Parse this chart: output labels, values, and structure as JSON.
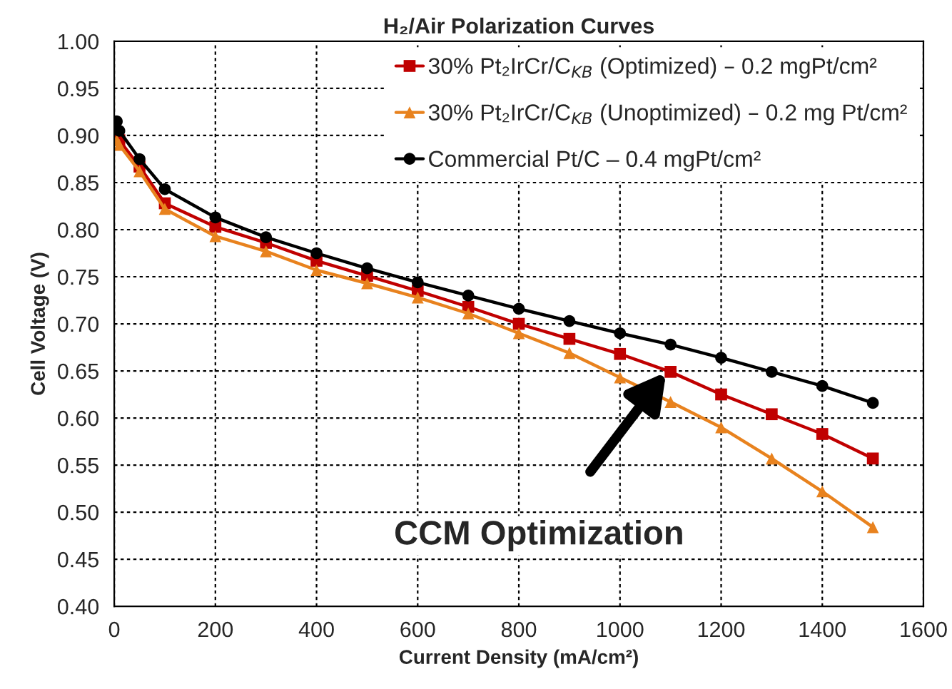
{
  "chart_data": {
    "type": "line",
    "title": "H₂/Air Polarization Curves",
    "xlabel": "Current Density (mA/cm²)",
    "ylabel": "Cell Voltage (V)",
    "x": [
      5,
      10,
      50,
      100,
      200,
      300,
      400,
      500,
      600,
      700,
      800,
      900,
      1000,
      1100,
      1200,
      1300,
      1400,
      1500
    ],
    "series": [
      {
        "name": "30% Pt₂IrCr/C$_{KB}$ (Optimized) – 0.2 mgPt/cm²",
        "color": "#c00000",
        "marker": "square",
        "values": [
          0.9,
          0.895,
          0.867,
          0.828,
          0.803,
          0.786,
          0.767,
          0.751,
          0.735,
          0.718,
          0.7,
          0.684,
          0.668,
          0.649,
          0.625,
          0.604,
          0.583,
          0.557
        ]
      },
      {
        "name": "30% Pt₂IrCr/C$_{KB}$ (Unoptimized) – 0.2 mg Pt/cm²",
        "color": "#e8821e",
        "marker": "triangle",
        "values": [
          0.895,
          0.89,
          0.862,
          0.822,
          0.793,
          0.777,
          0.757,
          0.743,
          0.728,
          0.711,
          0.69,
          0.669,
          0.643,
          0.617,
          0.59,
          0.557,
          0.522,
          0.484
        ]
      },
      {
        "name": "Commercial Pt/C – 0.4 mgPt/cm²",
        "color": "#000000",
        "marker": "circle",
        "values": [
          0.915,
          0.905,
          0.875,
          0.843,
          0.813,
          0.792,
          0.775,
          0.759,
          0.744,
          0.73,
          0.716,
          0.703,
          0.69,
          0.678,
          0.664,
          0.649,
          0.634,
          0.616
        ]
      }
    ],
    "xlim": [
      0,
      1600
    ],
    "xticks": [
      0,
      200,
      400,
      600,
      800,
      1000,
      1200,
      1400,
      1600
    ],
    "ylim": [
      0.4,
      1.0
    ],
    "yticks": [
      {
        "value": 0.4,
        "label": "0.40"
      },
      {
        "value": 0.45,
        "label": "0.45"
      },
      {
        "value": 0.5,
        "label": "0.50"
      },
      {
        "value": 0.55,
        "label": "0.55"
      },
      {
        "value": 0.6,
        "label": "0.60"
      },
      {
        "value": 0.65,
        "label": "0.65"
      },
      {
        "value": 0.7,
        "label": "0.70"
      },
      {
        "value": 0.75,
        "label": "0.75"
      },
      {
        "value": 0.8,
        "label": "0.80"
      },
      {
        "value": 0.85,
        "label": "0.85"
      },
      {
        "value": 0.9,
        "label": "0.90"
      },
      {
        "value": 0.95,
        "label": "0.95"
      },
      {
        "value": 1.0,
        "label": "1.00"
      }
    ],
    "annotations": [
      "CCM Optimization"
    ],
    "grid": true,
    "legend": "top right",
    "line_style": "solid"
  }
}
